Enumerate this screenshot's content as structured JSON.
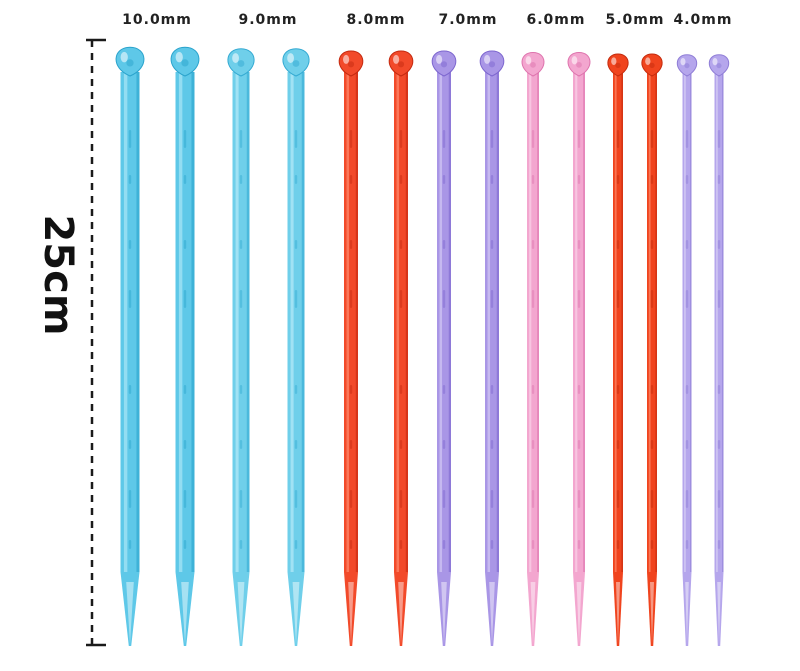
{
  "product": {
    "length_label": "25cm",
    "needle_count_per_size": 2,
    "needles": [
      {
        "size": "10.0mm",
        "color": "#5ec8e8",
        "dark": "#2aa3cc",
        "light": "#a9e6f7"
      },
      {
        "size": "9.0mm",
        "color": "#6fcfea",
        "dark": "#34aad2",
        "light": "#b6eaf8"
      },
      {
        "size": "8.0mm",
        "color": "#f24a2a",
        "dark": "#c42a10",
        "light": "#ff8a6e"
      },
      {
        "size": "7.0mm",
        "color": "#a996e6",
        "dark": "#7d66cf",
        "light": "#d3c8f4"
      },
      {
        "size": "6.0mm",
        "color": "#f3a6cf",
        "dark": "#de73ad",
        "light": "#fad3e8"
      },
      {
        "size": "5.0mm",
        "color": "#f0441e",
        "dark": "#c42c0e",
        "light": "#ff8a6a"
      },
      {
        "size": "4.0mm",
        "color": "#b5a6ec",
        "dark": "#8e7cd6",
        "light": "#dcd4f7"
      }
    ]
  }
}
